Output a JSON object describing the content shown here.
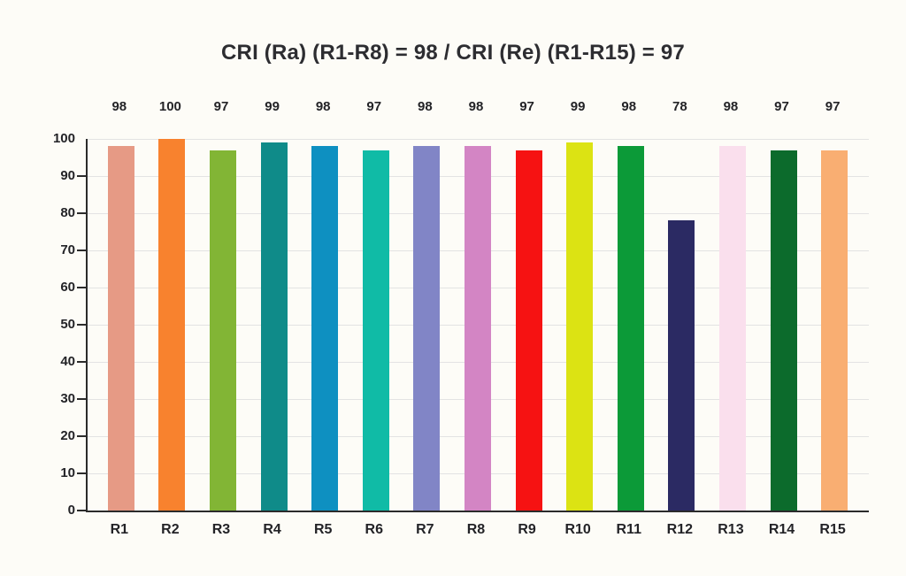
{
  "page": {
    "background_color": "#fdfcf7",
    "text_color": "#232327",
    "axis_color": "#2b2b2b",
    "gridline_color": "#e3e3e3"
  },
  "chart_data": {
    "type": "bar",
    "title": "CRI (Ra) (R1-R8) = 98 / CRI (Re) (R1-R15) = 97",
    "categories": [
      "R1",
      "R2",
      "R3",
      "R4",
      "R5",
      "R6",
      "R7",
      "R8",
      "R9",
      "R10",
      "R11",
      "R12",
      "R13",
      "R14",
      "R15"
    ],
    "values": [
      98,
      100,
      97,
      99,
      98,
      97,
      98,
      98,
      97,
      99,
      98,
      78,
      98,
      97,
      97
    ],
    "bar_colors": [
      "#E69A85",
      "#F8822E",
      "#82B535",
      "#0F8B89",
      "#0E90C1",
      "#10BBA6",
      "#8185C6",
      "#D385C4",
      "#F61212",
      "#DCE313",
      "#0C9A38",
      "#2B2A63",
      "#FADFED",
      "#0C6B2C",
      "#F9AE72"
    ],
    "xlabel": "",
    "ylabel": "",
    "ylim": [
      0,
      100
    ],
    "yticks": [
      0,
      10,
      20,
      30,
      40,
      50,
      60,
      70,
      80,
      90,
      100
    ],
    "grid": true,
    "legend": "none",
    "value_labels_shown": true
  }
}
